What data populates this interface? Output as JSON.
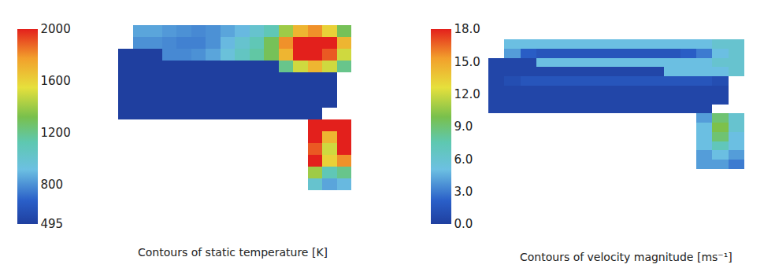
{
  "chart_data": [
    {
      "type": "heatmap",
      "title": "Contours of static temperature [K]",
      "tick_labels": false,
      "cells": [
        [
          null,
          850,
          850,
          820,
          800,
          780,
          800,
          850,
          900,
          1000,
          1100,
          1400,
          1700,
          1800,
          1600,
          1300
        ],
        [
          null,
          800,
          800,
          780,
          760,
          760,
          800,
          900,
          1000,
          1100,
          1300,
          1800,
          2000,
          2000,
          2000,
          1700
        ],
        [
          495,
          495,
          495,
          780,
          780,
          800,
          850,
          950,
          1050,
          1150,
          1300,
          1700,
          2000,
          2000,
          1900,
          1500
        ],
        [
          495,
          495,
          495,
          495,
          495,
          495,
          495,
          495,
          495,
          495,
          495,
          1200,
          1500,
          1700,
          1500,
          1200
        ],
        [
          495,
          495,
          495,
          495,
          495,
          495,
          495,
          495,
          495,
          495,
          495,
          495,
          495,
          495,
          495,
          null
        ],
        [
          495,
          495,
          495,
          495,
          495,
          495,
          495,
          495,
          495,
          495,
          495,
          495,
          495,
          495,
          495,
          null
        ],
        [
          495,
          495,
          495,
          495,
          495,
          495,
          495,
          495,
          495,
          495,
          495,
          495,
          495,
          495,
          495,
          null
        ],
        [
          495,
          495,
          495,
          495,
          495,
          495,
          495,
          495,
          495,
          495,
          495,
          495,
          495,
          495,
          null,
          null
        ],
        [
          null,
          null,
          null,
          null,
          null,
          null,
          null,
          null,
          null,
          null,
          null,
          null,
          null,
          2000,
          2000,
          2000
        ],
        [
          null,
          null,
          null,
          null,
          null,
          null,
          null,
          null,
          null,
          null,
          null,
          null,
          null,
          2000,
          1700,
          2000
        ],
        [
          null,
          null,
          null,
          null,
          null,
          null,
          null,
          null,
          null,
          null,
          null,
          null,
          null,
          1900,
          1500,
          2000
        ],
        [
          null,
          null,
          null,
          null,
          null,
          null,
          null,
          null,
          null,
          null,
          null,
          null,
          null,
          2000,
          1600,
          1800
        ],
        [
          null,
          null,
          null,
          null,
          null,
          null,
          null,
          null,
          null,
          null,
          null,
          null,
          null,
          1400,
          1100,
          1200
        ],
        [
          null,
          null,
          null,
          null,
          null,
          null,
          null,
          null,
          null,
          null,
          null,
          null,
          null,
          1000,
          850,
          900
        ]
      ],
      "colorbar": {
        "range": [
          495,
          2000
        ],
        "ticks": [
          495,
          800,
          1200,
          1600,
          2000
        ]
      }
    },
    {
      "type": "heatmap",
      "title": "Contours of velocity magnitude [ms⁻¹]",
      "tick_labels": false,
      "cells": [
        [
          null,
          5,
          5,
          5,
          5,
          5,
          5,
          5,
          5,
          5,
          5,
          5,
          5,
          5,
          6,
          6
        ],
        [
          null,
          4,
          2,
          1.5,
          1.5,
          1.5,
          1.5,
          1.5,
          1.5,
          1.5,
          1.5,
          1.5,
          2,
          3,
          5,
          6
        ],
        [
          0.5,
          0.5,
          0.5,
          5,
          5,
          5,
          5,
          5,
          5,
          5,
          5,
          5,
          5,
          5,
          6,
          6
        ],
        [
          0.5,
          0.5,
          0.5,
          0.5,
          0.5,
          0.5,
          0.5,
          0.5,
          0.5,
          0.5,
          0.5,
          5,
          5,
          5,
          5,
          6
        ],
        [
          0.5,
          1,
          1.5,
          1.5,
          1.5,
          1.5,
          1.5,
          1.5,
          1.5,
          1.5,
          1.5,
          1.5,
          1.5,
          1.5,
          1,
          null
        ],
        [
          0.5,
          0.5,
          0.5,
          0.5,
          0.5,
          0.5,
          0.5,
          0.5,
          0.5,
          0.5,
          0.5,
          0.5,
          0.5,
          0.5,
          0.5,
          null
        ],
        [
          0.5,
          0.5,
          0.5,
          0.5,
          0.5,
          0.5,
          0.5,
          0.5,
          0.5,
          0.5,
          0.5,
          0.5,
          0.5,
          0.5,
          0.5,
          null
        ],
        [
          0.5,
          0.5,
          0.5,
          0.5,
          0.5,
          0.5,
          0.5,
          0.5,
          0.5,
          0.5,
          0.5,
          0.5,
          0.5,
          0.5,
          null,
          null
        ],
        [
          null,
          null,
          null,
          null,
          null,
          null,
          null,
          null,
          null,
          null,
          null,
          null,
          null,
          4,
          9,
          6
        ],
        [
          null,
          null,
          null,
          null,
          null,
          null,
          null,
          null,
          null,
          null,
          null,
          null,
          null,
          5,
          10,
          6
        ],
        [
          null,
          null,
          null,
          null,
          null,
          null,
          null,
          null,
          null,
          null,
          null,
          null,
          null,
          5,
          9,
          5
        ],
        [
          null,
          null,
          null,
          null,
          null,
          null,
          null,
          null,
          null,
          null,
          null,
          null,
          null,
          5,
          7,
          5
        ],
        [
          null,
          null,
          null,
          null,
          null,
          null,
          null,
          null,
          null,
          null,
          null,
          null,
          null,
          4,
          5,
          4
        ],
        [
          null,
          null,
          null,
          null,
          null,
          null,
          null,
          null,
          null,
          null,
          null,
          null,
          null,
          4,
          4,
          3
        ]
      ],
      "colorbar": {
        "range": [
          0,
          18
        ],
        "ticks": [
          {
            "value": 0,
            "label": "0.0"
          },
          {
            "value": 3,
            "label": "3.0"
          },
          {
            "value": 6,
            "label": "6.0"
          },
          {
            "value": 9,
            "label": "9.0"
          },
          {
            "value": 12,
            "label": "12.0"
          },
          {
            "value": 15,
            "label": "15.0"
          },
          {
            "value": 18,
            "label": "18.0"
          }
        ]
      }
    }
  ]
}
